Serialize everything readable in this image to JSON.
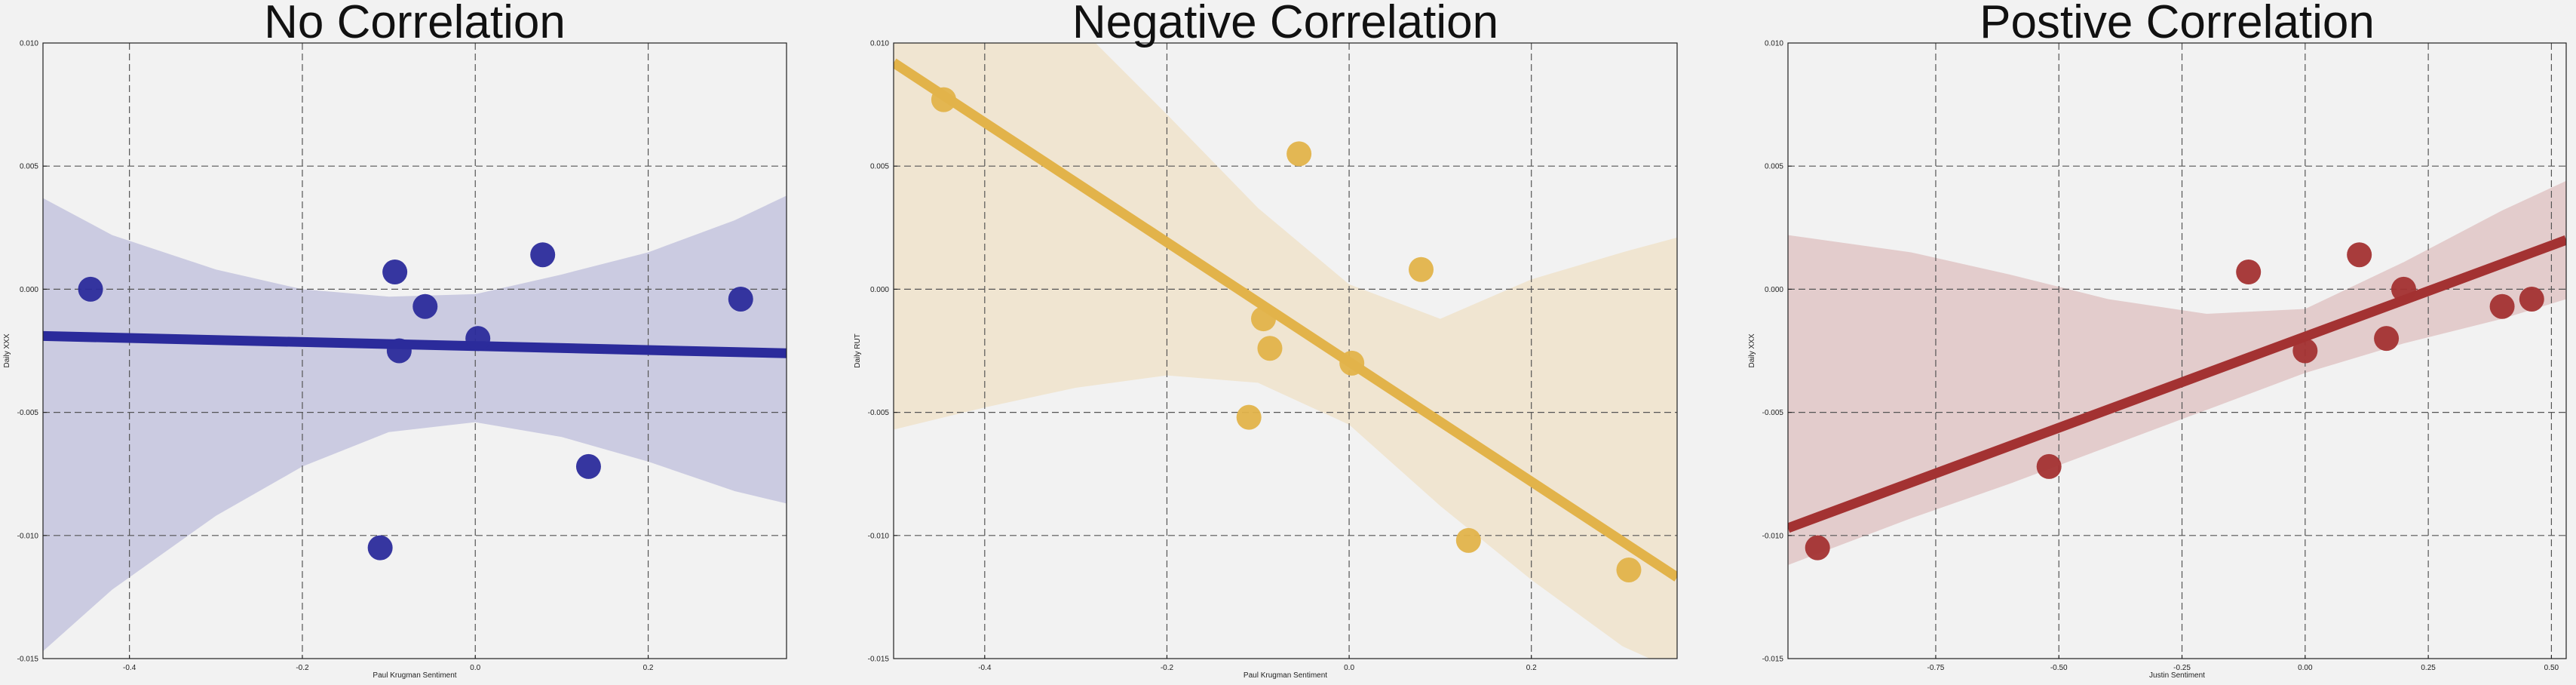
{
  "chart_data": [
    {
      "type": "scatter",
      "title": "No Correlation",
      "xlabel": "Paul Krugman Sentiment",
      "ylabel": "Daily XXX",
      "xlim": [
        -0.5,
        0.36
      ],
      "ylim": [
        -0.015,
        0.01
      ],
      "xticks": [
        -0.4,
        -0.2,
        0.0,
        0.2
      ],
      "xtick_labels": [
        "-0.4",
        "-0.2",
        "0.0",
        "0.2"
      ],
      "yticks": [
        -0.015,
        -0.01,
        -0.005,
        0.0,
        0.005,
        0.01
      ],
      "ytick_labels": [
        "-0.015",
        "-0.010",
        "-0.005",
        "0.000",
        "0.005",
        "0.010"
      ],
      "grid": true,
      "color": "#2b2b9b",
      "band_color": "#cbcbe1",
      "points": [
        {
          "x": -0.445,
          "y": 0.0
        },
        {
          "x": -0.11,
          "y": -0.0105
        },
        {
          "x": -0.093,
          "y": 0.0007
        },
        {
          "x": -0.088,
          "y": -0.0025
        },
        {
          "x": -0.058,
          "y": -0.0007
        },
        {
          "x": 0.003,
          "y": -0.002
        },
        {
          "x": 0.078,
          "y": 0.0014
        },
        {
          "x": 0.131,
          "y": -0.0072
        },
        {
          "x": 0.307,
          "y": -0.0004
        }
      ],
      "fit": {
        "x": [
          -0.5,
          0.36
        ],
        "y": [
          -0.0019,
          -0.0026
        ]
      },
      "band_upper": [
        [
          -0.5,
          0.0037
        ],
        [
          -0.42,
          0.0022
        ],
        [
          -0.3,
          0.0008
        ],
        [
          -0.2,
          0.0
        ],
        [
          -0.1,
          -0.0003
        ],
        [
          0.0,
          -0.0002
        ],
        [
          0.1,
          0.0006
        ],
        [
          0.2,
          0.0015
        ],
        [
          0.3,
          0.0028
        ],
        [
          0.36,
          0.0038
        ]
      ],
      "band_lower": [
        [
          -0.5,
          -0.0147
        ],
        [
          -0.42,
          -0.0122
        ],
        [
          -0.3,
          -0.0092
        ],
        [
          -0.2,
          -0.0072
        ],
        [
          -0.1,
          -0.0058
        ],
        [
          0.0,
          -0.0054
        ],
        [
          0.1,
          -0.006
        ],
        [
          0.2,
          -0.007
        ],
        [
          0.3,
          -0.0082
        ],
        [
          0.36,
          -0.0087
        ]
      ]
    },
    {
      "type": "scatter",
      "title": "Negative Correlation",
      "xlabel": "Paul Krugman Sentiment",
      "ylabel": "Daily RUT",
      "xlim": [
        -0.5,
        0.36
      ],
      "ylim": [
        -0.015,
        0.01
      ],
      "xticks": [
        -0.4,
        -0.2,
        0.0,
        0.2
      ],
      "xtick_labels": [
        "-0.4",
        "-0.2",
        "0.0",
        "0.2"
      ],
      "yticks": [
        -0.015,
        -0.01,
        -0.005,
        0.0,
        0.005,
        0.01
      ],
      "ytick_labels": [
        "-0.015",
        "-0.010",
        "-0.005",
        "0.000",
        "0.005",
        "0.010"
      ],
      "grid": true,
      "color": "#e2b34a",
      "band_color": "#f0e5d1",
      "points": [
        {
          "x": -0.445,
          "y": 0.0077
        },
        {
          "x": -0.055,
          "y": 0.0055
        },
        {
          "x": 0.079,
          "y": 0.0008
        },
        {
          "x": -0.094,
          "y": -0.0012
        },
        {
          "x": -0.087,
          "y": -0.0024
        },
        {
          "x": 0.003,
          "y": -0.003
        },
        {
          "x": -0.11,
          "y": -0.0052
        },
        {
          "x": 0.131,
          "y": -0.0102
        },
        {
          "x": 0.307,
          "y": -0.0114
        }
      ],
      "fit": {
        "x": [
          -0.5,
          0.36
        ],
        "y": [
          0.0092,
          -0.0117
        ]
      },
      "band_upper": [
        [
          -0.5,
          0.0108
        ],
        [
          -0.4,
          0.0108
        ],
        [
          -0.3,
          0.0108
        ],
        [
          -0.2,
          0.0071
        ],
        [
          -0.1,
          0.0033
        ],
        [
          0.0,
          0.0002
        ],
        [
          0.1,
          -0.0012
        ],
        [
          0.2,
          0.0004
        ],
        [
          0.3,
          0.0015
        ],
        [
          0.36,
          0.0021
        ]
      ],
      "band_lower": [
        [
          -0.5,
          -0.0057
        ],
        [
          -0.4,
          -0.0048
        ],
        [
          -0.3,
          -0.004
        ],
        [
          -0.2,
          -0.0035
        ],
        [
          -0.1,
          -0.0038
        ],
        [
          0.0,
          -0.0055
        ],
        [
          0.1,
          -0.0088
        ],
        [
          0.2,
          -0.0118
        ],
        [
          0.3,
          -0.0145
        ],
        [
          0.36,
          -0.0155
        ]
      ]
    },
    {
      "type": "scatter",
      "title": "Postive Correlation",
      "xlabel": "Justin Sentiment",
      "ylabel": "Daily XXX",
      "xlim": [
        -1.05,
        0.53
      ],
      "ylim": [
        -0.015,
        0.01
      ],
      "xticks": [
        -0.75,
        -0.5,
        -0.25,
        0.0,
        0.25,
        0.5
      ],
      "xtick_labels": [
        "-0.75",
        "-0.50",
        "-0.25",
        "0.00",
        "0.25",
        "0.50"
      ],
      "yticks": [
        -0.015,
        -0.01,
        -0.005,
        0.0,
        0.005,
        0.01
      ],
      "ytick_labels": [
        "-0.015",
        "-0.010",
        "-0.005",
        "0.000",
        "0.005",
        "0.010"
      ],
      "grid": true,
      "color": "#a33232",
      "band_color": "#e3cccc",
      "points": [
        {
          "x": -0.99,
          "y": -0.0105
        },
        {
          "x": -0.52,
          "y": -0.0072
        },
        {
          "x": -0.115,
          "y": 0.0007
        },
        {
          "x": 0.0,
          "y": -0.0025
        },
        {
          "x": 0.11,
          "y": 0.0014
        },
        {
          "x": 0.165,
          "y": -0.002
        },
        {
          "x": 0.2,
          "y": 0.0
        },
        {
          "x": 0.4,
          "y": -0.0007
        },
        {
          "x": 0.46,
          "y": -0.0004
        }
      ],
      "fit": {
        "x": [
          -1.05,
          0.53
        ],
        "y": [
          -0.0097,
          0.002
        ]
      },
      "band_upper": [
        [
          -1.05,
          0.0022
        ],
        [
          -0.8,
          0.0015
        ],
        [
          -0.6,
          0.0006
        ],
        [
          -0.4,
          -0.0004
        ],
        [
          -0.2,
          -0.001
        ],
        [
          0.0,
          -0.0008
        ],
        [
          0.2,
          0.0011
        ],
        [
          0.4,
          0.0032
        ],
        [
          0.53,
          0.0044
        ]
      ],
      "band_lower": [
        [
          -1.05,
          -0.0112
        ],
        [
          -0.8,
          -0.0093
        ],
        [
          -0.6,
          -0.0079
        ],
        [
          -0.4,
          -0.0064
        ],
        [
          -0.2,
          -0.0049
        ],
        [
          0.0,
          -0.0034
        ],
        [
          0.2,
          -0.0022
        ],
        [
          0.4,
          -0.0012
        ],
        [
          0.53,
          -0.0004
        ]
      ]
    }
  ]
}
